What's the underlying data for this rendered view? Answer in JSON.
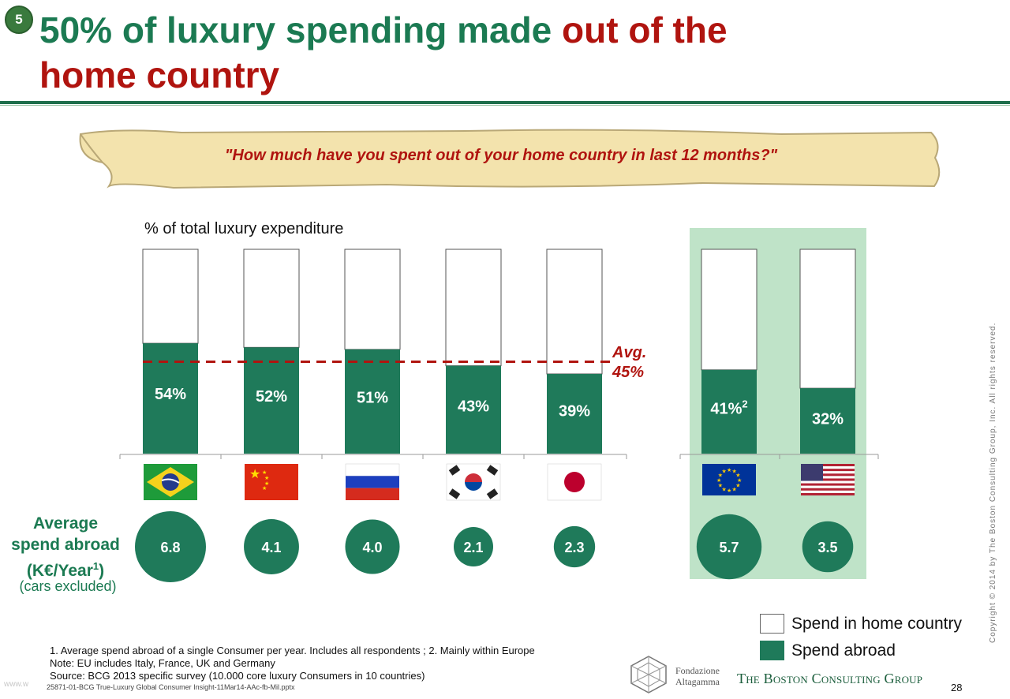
{
  "slide": {
    "badge": "5",
    "title_green": "50% of luxury spending made ",
    "title_red_1": "out of the",
    "title_red_2": "home country",
    "question": "\"How much have you spent out of your home country in last 12 months?\"",
    "pct_label": "% of total luxury expenditure",
    "avg_label_1": "Avg.",
    "avg_label_2": "45%",
    "avg_title_1": "Average",
    "avg_title_2": "spend abroad",
    "avg_title_3": "(K€/Year",
    "avg_title_sup": "1",
    "avg_title_4": ")",
    "avg_sub": "(cars excluded)",
    "legend_home": "Spend in home country",
    "legend_abroad": "Spend abroad",
    "note_1": "1. Average spend abroad of a single Consumer per year. Includes all respondents ; 2. Mainly within Europe",
    "note_2": "Note: EU includes Italy, France, UK and Germany",
    "note_3": "Source: BCG 2013 specific survey (10.000 core luxury Consumers in 10 countries)",
    "filename": "25871-01-BCG True-Luxury Global Consumer Insight-11Mar14-AAc-fb-Mil.pptx",
    "watermark": "www.w",
    "page_number": "28",
    "copyright": "Copyright © 2014 by The Boston Consulting Group, Inc. All rights reserved.",
    "fa_line1": "Fondazione",
    "fa_line2": "Altagamma",
    "bcg_logo": "The Boston Consulting Group"
  },
  "colors": {
    "green": "#1f7a5a",
    "title_green": "#1b7a52",
    "red": "#b0140f",
    "highlight": "#bfe3c8"
  },
  "chart_data": {
    "type": "bar",
    "categories": [
      "Brazil",
      "China",
      "Russia",
      "South Korea",
      "Japan",
      "EU",
      "USA"
    ],
    "flags": [
      "brazil-flag",
      "china-flag",
      "russia-flag",
      "korea-flag",
      "japan-flag",
      "eu-flag",
      "usa-flag"
    ],
    "series": [
      {
        "name": "Spend abroad",
        "values": [
          54,
          52,
          51,
          43,
          39,
          41,
          32
        ]
      },
      {
        "name": "Spend in home country",
        "values": [
          46,
          48,
          49,
          57,
          61,
          59,
          68
        ]
      }
    ],
    "value_labels": [
      "54%",
      "52%",
      "51%",
      "43%",
      "39%",
      "41%",
      "32%"
    ],
    "value_label_sups": [
      "",
      "",
      "",
      "",
      "",
      "2",
      ""
    ],
    "average": 45,
    "highlighted_categories": [
      "EU",
      "USA"
    ],
    "avg_spend_abroad": [
      6.8,
      4.1,
      4.0,
      2.1,
      2.3,
      5.7,
      3.5
    ],
    "avg_spend_labels": [
      "6.8",
      "4.1",
      "4.0",
      "2.1",
      "2.3",
      "5.7",
      "3.5"
    ],
    "ylim": [
      0,
      100
    ],
    "stacked": true,
    "legend_position": "bottom-right"
  }
}
